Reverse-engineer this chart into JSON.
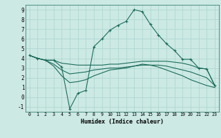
{
  "title": "",
  "xlabel": "Humidex (Indice chaleur)",
  "xlim": [
    -0.5,
    23.5
  ],
  "ylim": [
    -1.5,
    9.5
  ],
  "xticks": [
    0,
    1,
    2,
    3,
    4,
    5,
    6,
    7,
    8,
    9,
    10,
    11,
    12,
    13,
    14,
    15,
    16,
    17,
    18,
    19,
    20,
    21,
    22,
    23
  ],
  "yticks": [
    -1,
    0,
    1,
    2,
    3,
    4,
    5,
    6,
    7,
    8,
    9
  ],
  "bg_color": "#cce9e4",
  "grid_color": "#aad4cc",
  "line_color": "#1a6b5a",
  "series": [
    {
      "x": [
        0,
        1,
        2,
        3,
        4,
        5,
        6,
        7,
        8,
        9,
        10,
        11,
        12,
        13,
        14,
        15,
        16,
        17,
        18,
        19,
        20,
        21,
        22,
        23
      ],
      "y": [
        4.3,
        4.0,
        3.8,
        3.8,
        3.1,
        -1.2,
        0.4,
        0.7,
        5.2,
        6.0,
        6.9,
        7.4,
        7.8,
        9.0,
        8.8,
        7.5,
        6.4,
        5.5,
        4.8,
        3.9,
        3.9,
        3.0,
        2.9,
        1.2
      ],
      "marker": "+"
    },
    {
      "x": [
        0,
        1,
        2,
        3,
        4,
        5,
        6,
        7,
        8,
        9,
        10,
        11,
        12,
        13,
        14,
        15,
        16,
        17,
        18,
        19,
        20,
        21,
        22,
        23
      ],
      "y": [
        4.3,
        4.0,
        3.8,
        3.8,
        3.5,
        3.4,
        3.3,
        3.3,
        3.3,
        3.3,
        3.4,
        3.4,
        3.5,
        3.6,
        3.7,
        3.7,
        3.7,
        3.7,
        3.6,
        3.5,
        3.3,
        3.0,
        2.9,
        1.2
      ],
      "marker": null
    },
    {
      "x": [
        0,
        1,
        2,
        3,
        4,
        5,
        6,
        7,
        8,
        9,
        10,
        11,
        12,
        13,
        14,
        15,
        16,
        17,
        18,
        19,
        20,
        21,
        22,
        23
      ],
      "y": [
        4.3,
        4.0,
        3.8,
        3.4,
        2.8,
        2.4,
        2.5,
        2.6,
        2.8,
        2.9,
        3.0,
        3.0,
        3.1,
        3.2,
        3.3,
        3.3,
        3.3,
        3.2,
        3.0,
        2.8,
        2.6,
        2.3,
        2.0,
        1.2
      ],
      "marker": null
    },
    {
      "x": [
        0,
        1,
        2,
        3,
        4,
        5,
        6,
        7,
        8,
        9,
        10,
        11,
        12,
        13,
        14,
        15,
        16,
        17,
        18,
        19,
        20,
        21,
        22,
        23
      ],
      "y": [
        4.3,
        4.0,
        3.8,
        3.2,
        2.2,
        1.5,
        1.6,
        1.8,
        2.2,
        2.5,
        2.8,
        2.9,
        3.0,
        3.2,
        3.4,
        3.3,
        3.1,
        2.8,
        2.5,
        2.2,
        1.8,
        1.5,
        1.2,
        1.0
      ],
      "marker": null
    }
  ]
}
